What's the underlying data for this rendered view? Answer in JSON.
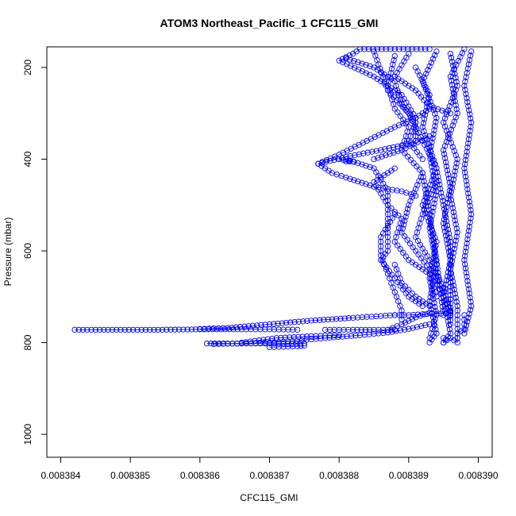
{
  "chart_data": {
    "type": "scatter",
    "title": "ATOM3 Northeast_Pacific_1 CFC115_GMI",
    "xlabel": "CFC115_GMI",
    "ylabel": "Pressure (mbar)",
    "xlim": [
      0.0083838,
      0.0083902
    ],
    "ylim": [
      1050,
      155
    ],
    "y_reversed": true,
    "x_ticks": [
      "0.008384",
      "0.008385",
      "0.008386",
      "0.008387",
      "0.008388",
      "0.008389",
      "0.008390"
    ],
    "x_tick_values": [
      0.008384,
      0.008385,
      0.008386,
      0.008387,
      0.008388,
      0.008389,
      0.00839
    ],
    "y_ticks": [
      "200",
      "400",
      "600",
      "800",
      "1000"
    ],
    "y_tick_values": [
      200,
      400,
      600,
      800,
      1000
    ],
    "grid": false,
    "legend": "none",
    "marker": "open-circle",
    "connected": true,
    "color": "#0000ff",
    "series": [
      {
        "points": [
          [
            0.0083898,
            160
          ],
          [
            0.0083896,
            220
          ],
          [
            0.0083897,
            300
          ],
          [
            0.0083895,
            380
          ],
          [
            0.0083896,
            460
          ],
          [
            0.0083895,
            540
          ],
          [
            0.0083896,
            620
          ],
          [
            0.0083895,
            700
          ],
          [
            0.0083896,
            780
          ],
          [
            0.0083895,
            800
          ]
        ]
      },
      {
        "points": [
          [
            0.0083894,
            165
          ],
          [
            0.0083892,
            230
          ],
          [
            0.0083894,
            310
          ],
          [
            0.0083893,
            390
          ],
          [
            0.0083894,
            470
          ],
          [
            0.0083893,
            550
          ],
          [
            0.0083894,
            630
          ],
          [
            0.0083893,
            710
          ],
          [
            0.0083894,
            780
          ],
          [
            0.0083893,
            800
          ]
        ]
      },
      {
        "points": [
          [
            0.0083896,
            170
          ],
          [
            0.0083897,
            240
          ],
          [
            0.0083895,
            320
          ],
          [
            0.0083897,
            400
          ],
          [
            0.0083896,
            480
          ],
          [
            0.0083897,
            560
          ],
          [
            0.0083896,
            640
          ],
          [
            0.0083897,
            720
          ],
          [
            0.0083897,
            790
          ]
        ]
      },
      {
        "points": [
          [
            0.0083891,
            200
          ],
          [
            0.0083893,
            260
          ],
          [
            0.0083892,
            330
          ],
          [
            0.0083894,
            420
          ],
          [
            0.0083892,
            500
          ],
          [
            0.0083894,
            580
          ],
          [
            0.0083893,
            660
          ],
          [
            0.0083894,
            740
          ],
          [
            0.0083893,
            790
          ]
        ]
      },
      {
        "points": [
          [
            0.0083899,
            165
          ],
          [
            0.0083898,
            240
          ],
          [
            0.0083899,
            320
          ],
          [
            0.0083898,
            420
          ],
          [
            0.0083899,
            520
          ],
          [
            0.0083898,
            620
          ],
          [
            0.0083899,
            720
          ],
          [
            0.0083898,
            780
          ]
        ]
      },
      {
        "points": [
          [
            0.0083885,
            165
          ],
          [
            0.0083887,
            250
          ],
          [
            0.008389,
            300
          ],
          [
            0.0083892,
            360
          ],
          [
            0.0083894,
            420
          ],
          [
            0.0083895,
            500
          ],
          [
            0.0083896,
            580
          ],
          [
            0.0083896,
            660
          ],
          [
            0.0083896,
            760
          ]
        ]
      },
      {
        "points": [
          [
            0.0083888,
            175
          ],
          [
            0.0083887,
            240
          ],
          [
            0.0083888,
            290
          ],
          [
            0.008389,
            330
          ],
          [
            0.0083889,
            380
          ],
          [
            0.0083892,
            430
          ],
          [
            0.0083893,
            520
          ],
          [
            0.0083894,
            620
          ],
          [
            0.0083895,
            740
          ]
        ]
      },
      {
        "points": [
          [
            0.0083881,
            180
          ],
          [
            0.0083885,
            200
          ],
          [
            0.0083888,
            230
          ],
          [
            0.0083889,
            280
          ],
          [
            0.0083891,
            320
          ],
          [
            0.008389,
            360
          ],
          [
            0.0083892,
            400
          ]
        ]
      },
      {
        "points": [
          [
            0.008389,
            170
          ],
          [
            0.0083888,
            220
          ],
          [
            0.0083891,
            250
          ],
          [
            0.0083893,
            285
          ],
          [
            0.0083896,
            300
          ]
        ]
      },
      {
        "points": [
          [
            0.0083893,
            160
          ],
          [
            0.0083883,
            160
          ],
          [
            0.0083882,
            170
          ],
          [
            0.008388,
            185
          ],
          [
            0.0083885,
            220
          ],
          [
            0.0083889,
            260
          ],
          [
            0.0083891,
            310
          ],
          [
            0.0083891,
            360
          ]
        ]
      },
      {
        "points": [
          [
            0.0083877,
            410
          ],
          [
            0.008388,
            390
          ],
          [
            0.0083884,
            360
          ],
          [
            0.0083888,
            330
          ],
          [
            0.0083891,
            310
          ],
          [
            0.0083893,
            290
          ]
        ]
      },
      {
        "points": [
          [
            0.0083877,
            410
          ],
          [
            0.0083881,
            395
          ],
          [
            0.0083886,
            380
          ],
          [
            0.0083889,
            370
          ],
          [
            0.0083891,
            360
          ]
        ]
      },
      {
        "points": [
          [
            0.0083877,
            410
          ],
          [
            0.0083879,
            430
          ],
          [
            0.0083881,
            440
          ],
          [
            0.0083885,
            460
          ],
          [
            0.0083889,
            470
          ],
          [
            0.0083891,
            480
          ]
        ]
      },
      {
        "points": [
          [
            0.0083881,
            405
          ],
          [
            0.0083882,
            405
          ],
          [
            0.008388,
            400
          ]
        ]
      },
      {
        "points": [
          [
            0.0083881,
            400
          ],
          [
            0.0083885,
            420
          ],
          [
            0.0083887,
            470
          ],
          [
            0.0083887,
            550
          ],
          [
            0.0083887,
            600
          ],
          [
            0.0083886,
            620
          ],
          [
            0.0083888,
            660
          ],
          [
            0.008389,
            700
          ],
          [
            0.0083892,
            720
          ]
        ]
      },
      {
        "points": [
          [
            0.0083885,
            400
          ],
          [
            0.0083889,
            380
          ],
          [
            0.0083893,
            350
          ]
        ]
      },
      {
        "points": [
          [
            0.0083888,
            420
          ],
          [
            0.0083885,
            450
          ],
          [
            0.0083887,
            500
          ],
          [
            0.0083889,
            530
          ],
          [
            0.0083888,
            580
          ],
          [
            0.008389,
            620
          ],
          [
            0.0083893,
            650
          ],
          [
            0.0083894,
            700
          ]
        ]
      },
      {
        "points": [
          [
            0.0083892,
            430
          ],
          [
            0.008389,
            500
          ],
          [
            0.0083889,
            560
          ],
          [
            0.0083891,
            600
          ],
          [
            0.0083893,
            640
          ],
          [
            0.0083895,
            700
          ],
          [
            0.0083896,
            730
          ]
        ]
      },
      {
        "points": [
          [
            0.0083894,
            450
          ],
          [
            0.0083892,
            520
          ],
          [
            0.0083891,
            570
          ],
          [
            0.0083893,
            620
          ],
          [
            0.0083895,
            680
          ],
          [
            0.0083896,
            740
          ]
        ]
      },
      {
        "points": [
          [
            0.0083888,
            520
          ],
          [
            0.0083886,
            570
          ],
          [
            0.0083886,
            610
          ],
          [
            0.0083887,
            650
          ],
          [
            0.0083888,
            690
          ],
          [
            0.0083889,
            730
          ],
          [
            0.0083889,
            750
          ]
        ]
      },
      {
        "points": [
          [
            0.0083888,
            630
          ],
          [
            0.0083889,
            670
          ],
          [
            0.0083891,
            700
          ],
          [
            0.0083893,
            720
          ]
        ]
      },
      {
        "points": [
          [
            0.0083888,
            740
          ],
          [
            0.008389,
            740
          ],
          [
            0.0083892,
            738
          ],
          [
            0.0083894,
            737
          ],
          [
            0.0083896,
            736
          ]
        ]
      },
      {
        "points": [
          [
            0.0083887,
            772
          ],
          [
            0.0083889,
            760
          ],
          [
            0.0083891,
            745
          ],
          [
            0.0083893,
            735
          ]
        ]
      },
      {
        "points": [
          [
            0.0083878,
            772
          ],
          [
            0.0083882,
            772
          ],
          [
            0.0083885,
            772
          ],
          [
            0.0083887,
            772
          ],
          [
            0.0083888,
            772
          ]
        ]
      },
      {
        "points": [
          [
            0.0083842,
            772
          ],
          [
            0.0083848,
            772
          ],
          [
            0.0083854,
            772
          ],
          [
            0.008386,
            771
          ],
          [
            0.0083866,
            771
          ],
          [
            0.008387,
            771
          ],
          [
            0.0083874,
            772
          ]
        ]
      },
      {
        "points": [
          [
            0.008386,
            770
          ],
          [
            0.0083864,
            768
          ],
          [
            0.008387,
            760
          ],
          [
            0.0083876,
            752
          ],
          [
            0.0083882,
            746
          ],
          [
            0.0083886,
            742
          ],
          [
            0.0083888,
            740
          ]
        ]
      },
      {
        "points": [
          [
            0.0083862,
            803
          ],
          [
            0.0083866,
            802
          ],
          [
            0.008387,
            800
          ],
          [
            0.0083874,
            796
          ],
          [
            0.0083878,
            790
          ],
          [
            0.0083883,
            784
          ],
          [
            0.0083887,
            778
          ],
          [
            0.008389,
            770
          ],
          [
            0.0083893,
            760
          ]
        ]
      },
      {
        "points": [
          [
            0.0083861,
            802
          ],
          [
            0.0083864,
            802
          ],
          [
            0.0083868,
            802
          ],
          [
            0.0083872,
            802
          ],
          [
            0.0083875,
            802
          ]
        ]
      },
      {
        "points": [
          [
            0.008387,
            810
          ],
          [
            0.0083872,
            809
          ],
          [
            0.0083874,
            808
          ],
          [
            0.0083875,
            807
          ]
        ]
      },
      {
        "points": [
          [
            0.0083866,
            800
          ],
          [
            0.0083871,
            790
          ],
          [
            0.0083876,
            786
          ],
          [
            0.008388,
            784
          ]
        ]
      },
      {
        "points": [
          [
            0.0083895,
            790
          ],
          [
            0.0083895,
            800
          ],
          [
            0.0083896,
            790
          ],
          [
            0.0083897,
            800
          ],
          [
            0.0083897,
            780
          ],
          [
            0.0083898,
            770
          ],
          [
            0.0083898,
            740
          ]
        ]
      }
    ]
  }
}
